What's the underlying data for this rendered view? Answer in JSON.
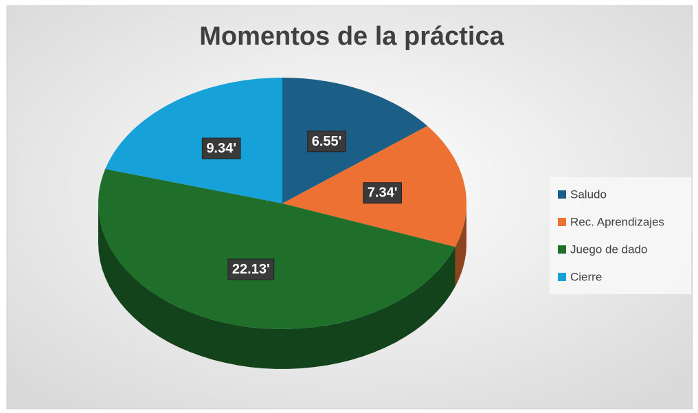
{
  "chart_data": {
    "type": "pie3d",
    "title": "Momentos de la práctica",
    "categories": [
      "Saludo",
      "Rec. Aprendizajes",
      "Juego de dado",
      "Cierre"
    ],
    "values": [
      6.55,
      7.34,
      22.13,
      9.34
    ],
    "value_labels": [
      "6.55'",
      "7.34'",
      "22.13'",
      "9.34'"
    ],
    "colors": [
      "#1b5f86",
      "#ec7133",
      "#1f6f2b",
      "#17a1d9"
    ],
    "legend": "right"
  }
}
